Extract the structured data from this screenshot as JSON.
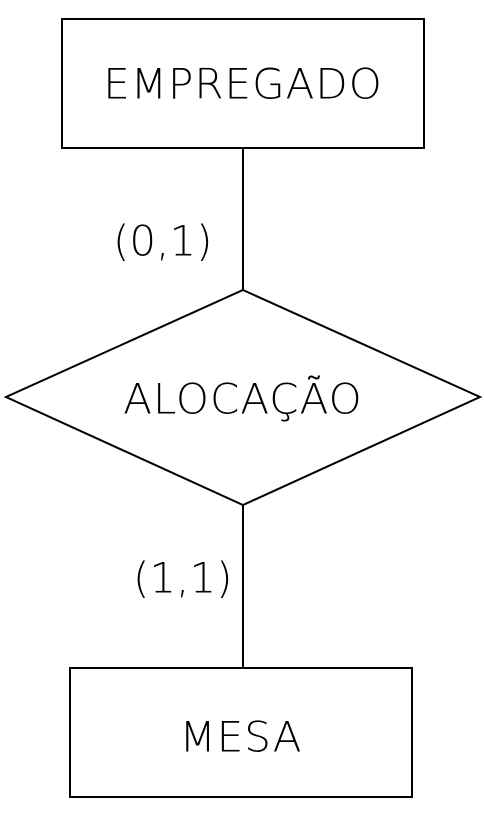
{
  "entities": {
    "top": {
      "name": "EMPREGADO"
    },
    "bottom": {
      "name": "MESA"
    }
  },
  "relationship": {
    "name": "ALOCAÇÃO"
  },
  "cardinalities": {
    "top": "(0,1)",
    "bottom": "(1,1)"
  },
  "colors": {
    "stroke": "#000000",
    "background": "#ffffff"
  }
}
